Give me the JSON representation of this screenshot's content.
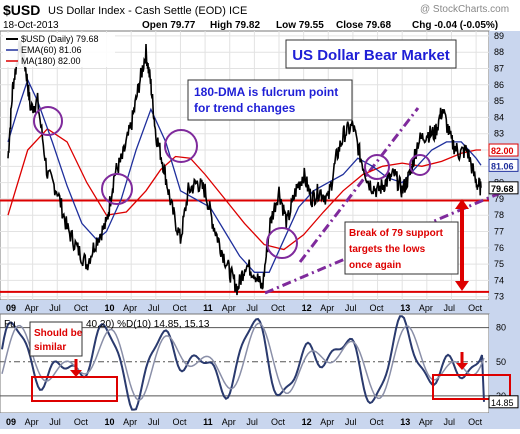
{
  "header": {
    "symbol": "$USD",
    "name": "US Dollar Index - Cash Settle (EOD) ICE",
    "watermark": "@ StockCharts.com",
    "date": "18-Oct-2013",
    "open": "Open 79.77",
    "high": "High 79.82",
    "low": "Low 79.55",
    "close": "Close 79.68",
    "chg": "Chg -0.04 (-0.05%)"
  },
  "colors": {
    "price": "#000000",
    "ema": "#1f2f9c",
    "ma": "#dd0000",
    "annotation": "#dd0000",
    "trendline": "#7f2a9c",
    "title_text": "#1f1fd6",
    "axis_bg": "#c9d6ee",
    "stoch": "#2a3a6e"
  },
  "chart_data": [
    {
      "type": "line",
      "title": "US Dollar Bear Market",
      "x_labels": [
        "09",
        "Apr",
        "Jul",
        "Oct",
        "10",
        "Apr",
        "Jul",
        "Oct",
        "11",
        "Apr",
        "Jul",
        "Oct",
        "12",
        "Apr",
        "Jul",
        "Oct",
        "13",
        "Apr",
        "Jul",
        "Oct"
      ],
      "x": [
        2009.0,
        2009.25,
        2009.5,
        2009.75,
        2010.0,
        2010.25,
        2010.5,
        2010.75,
        2011.0,
        2011.25,
        2011.5,
        2011.75,
        2012.0,
        2012.25,
        2012.5,
        2012.75,
        2013.0,
        2013.25,
        2013.5,
        2013.75
      ],
      "ylim": [
        72.8,
        89.3
      ],
      "y_ticks": [
        73,
        74,
        75,
        76,
        77,
        78,
        79,
        80,
        81,
        82,
        83,
        84,
        85,
        86,
        87,
        88,
        89
      ],
      "legend": [
        {
          "label": "$USD (Daily) 79.68"
        },
        {
          "label": "EMA(60) 81.06"
        },
        {
          "label": "MA(180) 82.00"
        }
      ],
      "series": [
        {
          "name": "$USD (Daily)",
          "color": "#000000",
          "x": [
            2009.0,
            2009.05,
            2009.12,
            2009.18,
            2009.23,
            2009.3,
            2009.4,
            2009.5,
            2009.6,
            2009.7,
            2009.8,
            2009.9,
            2010.0,
            2010.08,
            2010.16,
            2010.25,
            2010.33,
            2010.4,
            2010.45,
            2010.5,
            2010.58,
            2010.66,
            2010.75,
            2010.83,
            2010.92,
            2011.0,
            2011.08,
            2011.16,
            2011.25,
            2011.33,
            2011.41,
            2011.5,
            2011.58,
            2011.66,
            2011.75,
            2011.83,
            2011.92,
            2012.0,
            2012.08,
            2012.16,
            2012.25,
            2012.33,
            2012.41,
            2012.5,
            2012.58,
            2012.66,
            2012.75,
            2012.83,
            2012.92,
            2013.0,
            2013.08,
            2013.16,
            2013.25,
            2013.33,
            2013.41,
            2013.5,
            2013.58,
            2013.66,
            2013.75,
            2013.8
          ],
          "values": [
            81.5,
            86.0,
            88.4,
            87.0,
            84.5,
            85.0,
            80.5,
            79.5,
            77.2,
            76.0,
            75.0,
            76.5,
            77.5,
            80.5,
            81.5,
            83.5,
            86.0,
            88.0,
            86.0,
            83.0,
            81.0,
            78.5,
            76.5,
            79.5,
            80.0,
            79.5,
            77.5,
            76.0,
            74.5,
            73.5,
            75.0,
            74.5,
            73.5,
            77.5,
            79.5,
            77.5,
            79.5,
            80.5,
            79.0,
            79.5,
            79.0,
            81.5,
            83.0,
            83.5,
            81.5,
            80.0,
            79.5,
            80.0,
            80.5,
            79.5,
            80.5,
            82.5,
            83.0,
            83.0,
            84.5,
            82.5,
            81.8,
            82.0,
            80.0,
            79.68
          ]
        },
        {
          "name": "EMA(60)",
          "color": "#1f2f9c",
          "x": [
            2009.0,
            2009.1,
            2009.2,
            2009.3,
            2009.45,
            2009.6,
            2009.75,
            2009.9,
            2010.0,
            2010.15,
            2010.3,
            2010.45,
            2010.6,
            2010.75,
            2010.9,
            2011.05,
            2011.2,
            2011.35,
            2011.5,
            2011.65,
            2011.8,
            2011.95,
            2012.1,
            2012.25,
            2012.4,
            2012.55,
            2012.7,
            2012.85,
            2013.0,
            2013.15,
            2013.3,
            2013.45,
            2013.6,
            2013.75,
            2013.8
          ],
          "values": [
            82.5,
            84.5,
            86.3,
            85.0,
            82.5,
            79.8,
            77.5,
            76.5,
            77.0,
            79.0,
            82.0,
            84.5,
            82.5,
            79.5,
            79.0,
            78.5,
            77.0,
            75.5,
            74.5,
            74.5,
            76.5,
            78.5,
            79.5,
            80.0,
            80.5,
            81.5,
            81.0,
            80.3,
            80.0,
            81.0,
            82.0,
            82.5,
            82.5,
            81.5,
            81.06
          ]
        },
        {
          "name": "MA(180)",
          "color": "#dd0000",
          "x": [
            2009.0,
            2009.2,
            2009.4,
            2009.6,
            2009.8,
            2010.0,
            2010.2,
            2010.4,
            2010.55,
            2010.7,
            2010.85,
            2011.0,
            2011.2,
            2011.4,
            2011.6,
            2011.8,
            2012.0,
            2012.2,
            2012.4,
            2012.6,
            2012.8,
            2013.0,
            2013.2,
            2013.4,
            2013.6,
            2013.75,
            2013.8
          ],
          "values": [
            78.0,
            82.0,
            83.3,
            82.5,
            80.0,
            78.0,
            78.2,
            79.5,
            80.8,
            81.6,
            81.5,
            80.5,
            79.0,
            77.5,
            76.2,
            75.9,
            76.8,
            78.2,
            79.5,
            80.5,
            81.0,
            81.2,
            81.0,
            81.3,
            81.8,
            82.0,
            82.0
          ]
        }
      ],
      "support_lines": [
        73.3,
        78.9
      ],
      "markers": [
        {
          "label": "82.00",
          "value": 82.0
        },
        {
          "label": "81.06",
          "value": 81.06
        },
        {
          "label": "79.68",
          "value": 79.68
        }
      ],
      "annotations": [
        "180-DMA is fulcrum point for trend changes",
        "Break of 79 support targets the lows once again"
      ]
    },
    {
      "type": "line",
      "legend_label_parts": [
        "Fu",
        "40,20) %D(10) 14.85, 15.13"
      ],
      "ylim": [
        5,
        92
      ],
      "y_ticks": [
        20,
        50,
        80
      ],
      "markers": [
        {
          "label": "14.85",
          "value": 14.85
        }
      ],
      "annotations": [
        "Should be similar"
      ]
    }
  ]
}
